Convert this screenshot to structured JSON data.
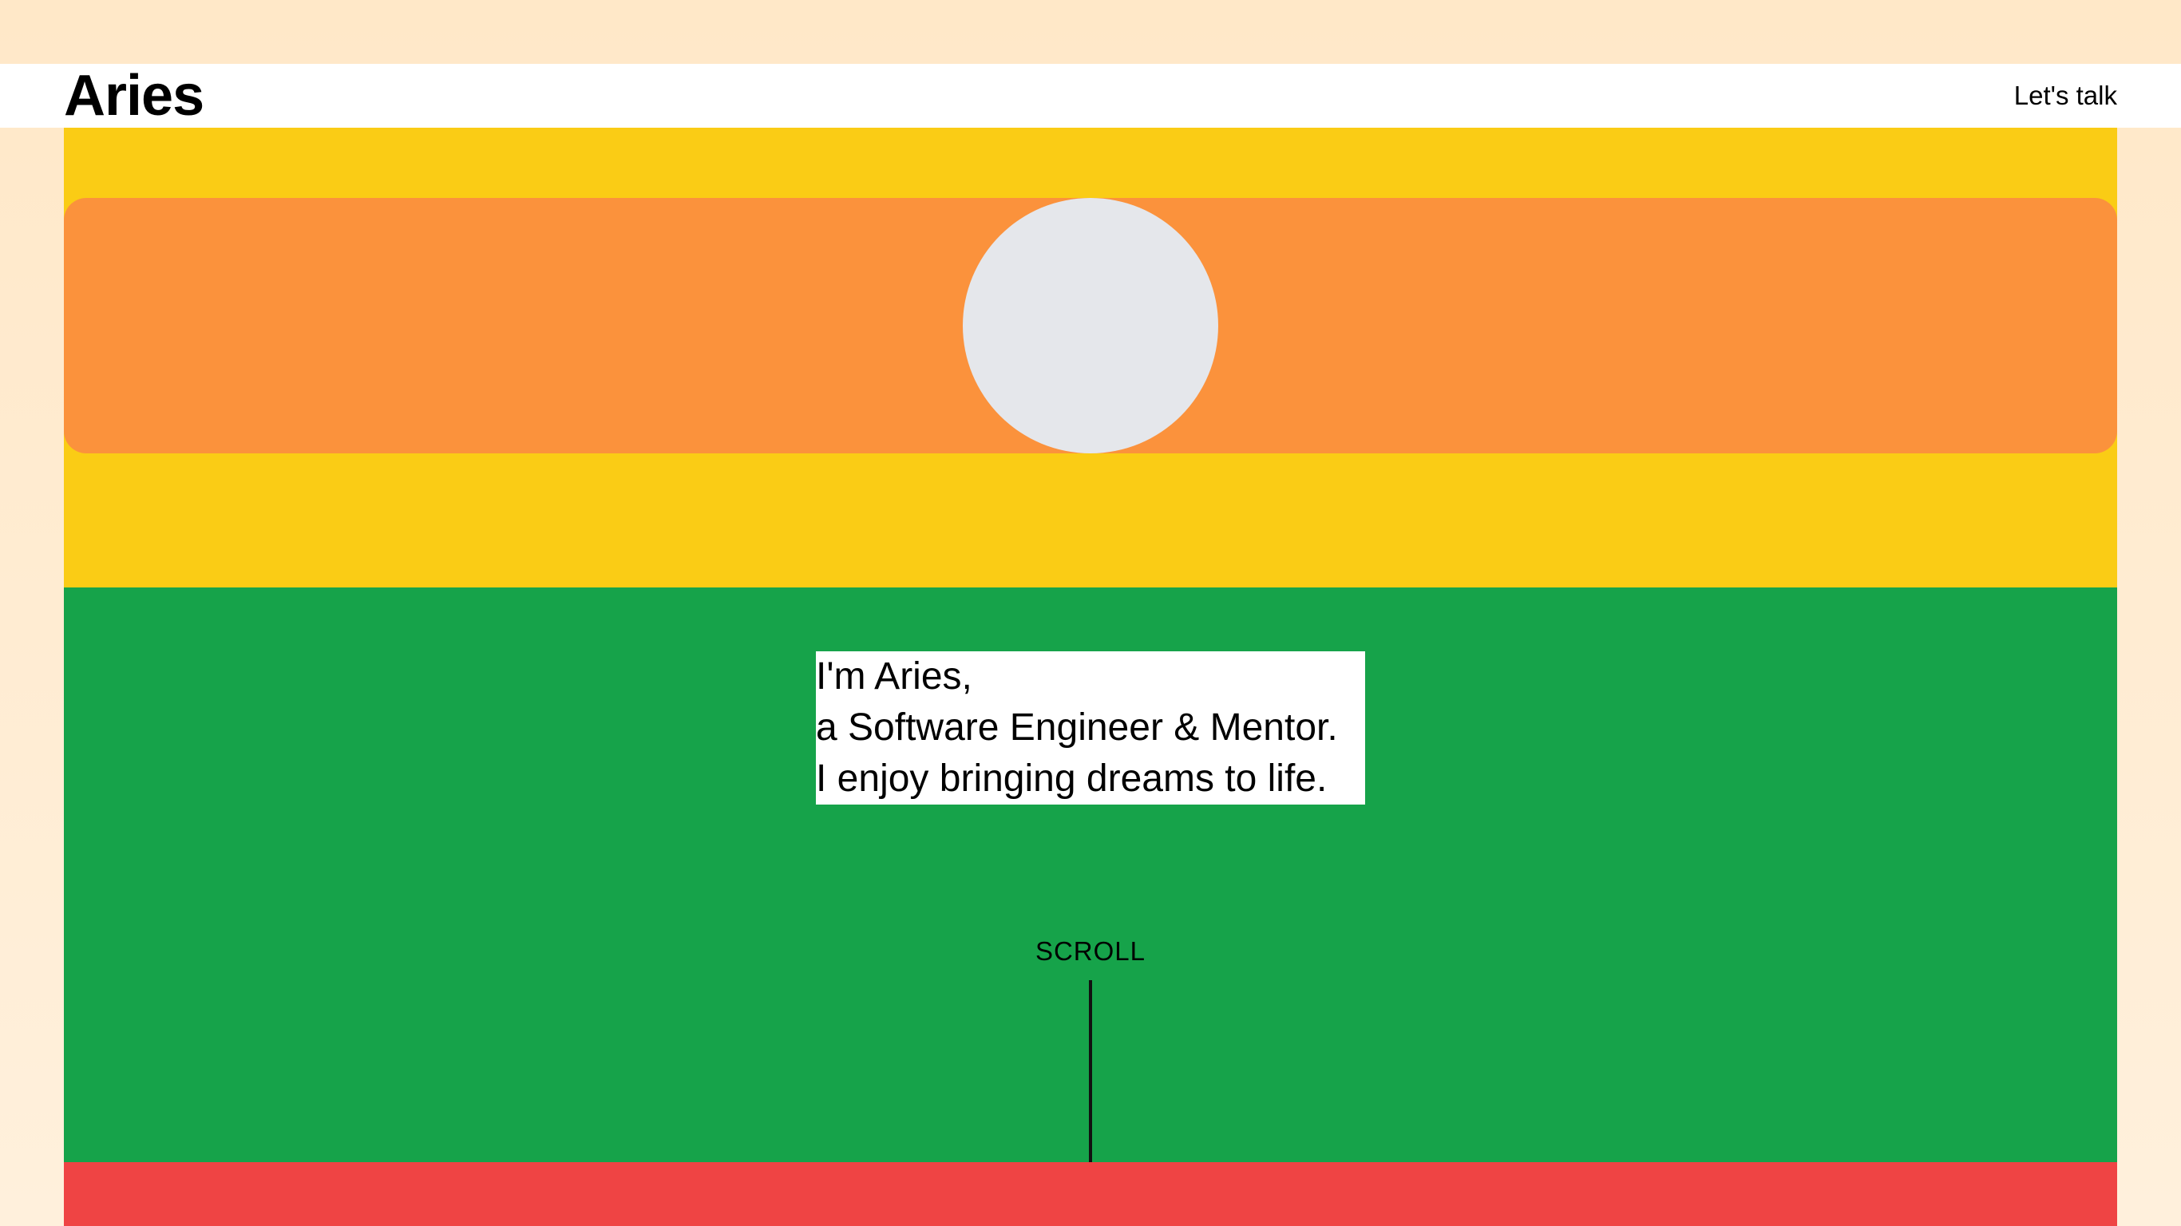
{
  "header": {
    "logo": "Aries",
    "cta_label": "Let's talk"
  },
  "hero": {
    "avatar_alt": "Profile photo"
  },
  "intro": {
    "lines": [
      "I'm Aries,",
      "a Software Engineer & Mentor.",
      "I enjoy bringing dreams to life."
    ],
    "scroll_label": "SCROLL"
  },
  "colors": {
    "page_background": "#FFE8C8",
    "header_background": "#FFFFFF",
    "hero_background": "#FACC15",
    "banner": "#FB923C",
    "avatar_placeholder": "#E5E7EB",
    "intro_background": "#16A34A",
    "next_section": "#EF4444",
    "text": "#000000"
  }
}
